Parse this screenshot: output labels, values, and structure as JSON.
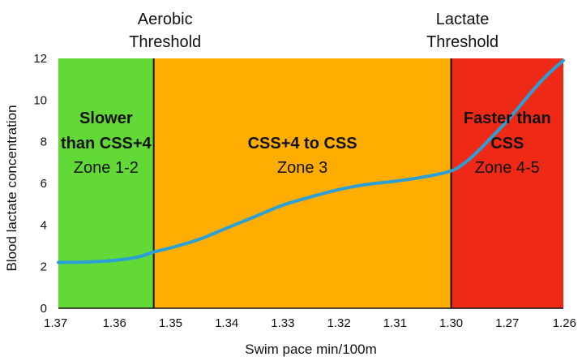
{
  "chart_data": {
    "type": "line",
    "xlabel": "Swim pace min/100m",
    "ylabel": "Blood lactate concentration",
    "ylim": [
      0,
      12
    ],
    "yticks": [
      0,
      2,
      4,
      6,
      8,
      10,
      12
    ],
    "x_tick_labels": [
      "1.37",
      "1.36",
      "1.35",
      "1.34",
      "1.33",
      "1.32",
      "1.31",
      "1.30",
      "1.27",
      "1.26"
    ],
    "grid": false,
    "thresholds": [
      {
        "label_line1": "Aerobic",
        "label_line2": "Threshold",
        "x_index": 1.7
      },
      {
        "label_line1": "Lactate",
        "label_line2": "Threshold",
        "x_index": 7.0
      }
    ],
    "zones": [
      {
        "title_line1": "Slower",
        "title_line2": "than CSS+4",
        "subtitle": "Zone 1-2",
        "x_start": 0,
        "x_end": 1.7,
        "color": "#63d938"
      },
      {
        "title_line1": "CSS+4 to CSS",
        "title_line2": "",
        "subtitle": "Zone 3",
        "x_start": 1.7,
        "x_end": 7.0,
        "color": "#ffad00"
      },
      {
        "title_line1": "Faster than",
        "title_line2": "CSS",
        "subtitle": "Zone 4-5",
        "x_start": 7.0,
        "x_end": 9.0,
        "color": "#ee2a16"
      }
    ],
    "series": [
      {
        "color": "#2a9fd8",
        "points": [
          [
            0.0,
            2.2
          ],
          [
            0.5,
            2.22
          ],
          [
            1.0,
            2.3
          ],
          [
            1.4,
            2.45
          ],
          [
            1.7,
            2.7
          ],
          [
            2.0,
            2.9
          ],
          [
            2.5,
            3.3
          ],
          [
            3.0,
            3.85
          ],
          [
            3.5,
            4.4
          ],
          [
            4.0,
            4.95
          ],
          [
            4.5,
            5.35
          ],
          [
            5.0,
            5.7
          ],
          [
            5.5,
            5.95
          ],
          [
            6.0,
            6.1
          ],
          [
            6.5,
            6.3
          ],
          [
            7.0,
            6.6
          ],
          [
            7.25,
            7.0
          ],
          [
            7.5,
            7.6
          ],
          [
            7.75,
            8.3
          ],
          [
            8.0,
            9.0
          ],
          [
            8.25,
            9.8
          ],
          [
            8.5,
            10.6
          ],
          [
            8.75,
            11.3
          ],
          [
            9.0,
            11.9
          ]
        ]
      }
    ]
  }
}
